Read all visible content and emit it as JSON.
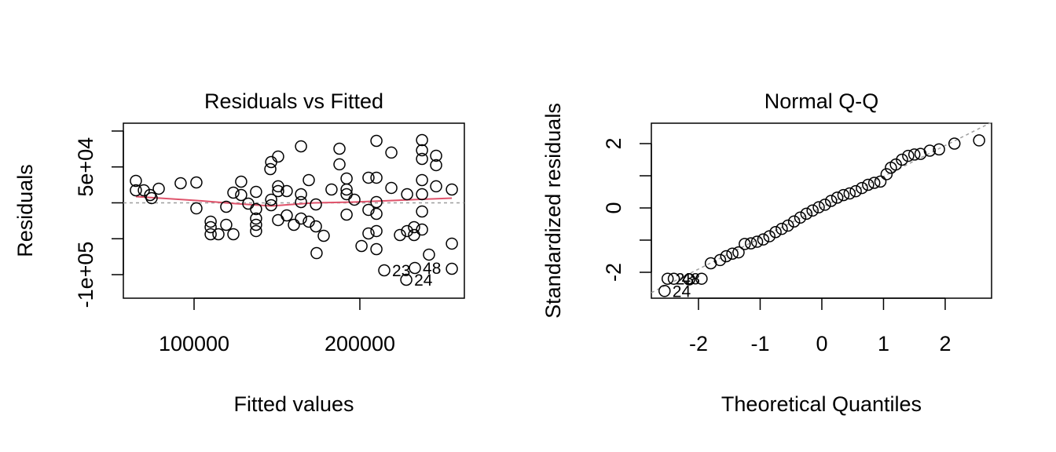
{
  "chart_data": [
    {
      "type": "scatter",
      "title": "Residuals vs Fitted",
      "x_label": "Fitted values",
      "y_label": "Residuals",
      "color": "#000000",
      "x": [
        64900,
        64900,
        69700,
        73500,
        74400,
        78700,
        91900,
        101400,
        101400,
        110000,
        110000,
        110000,
        114700,
        119400,
        119400,
        123700,
        123700,
        128400,
        128400,
        132700,
        137400,
        137400,
        137400,
        137400,
        137400,
        146000,
        146500,
        146500,
        146500,
        150700,
        150700,
        150700,
        150700,
        155900,
        155900,
        160200,
        164500,
        164500,
        164500,
        164500,
        169200,
        169200,
        173500,
        173500,
        178200,
        173900,
        182900,
        187700,
        187700,
        192000,
        192000,
        192000,
        192000,
        196700,
        201000,
        205200,
        205200,
        205200,
        210000,
        210000,
        210000,
        210000,
        210000,
        210000,
        214700,
        219000,
        219000,
        224200,
        228500,
        228500,
        232700,
        232700,
        237500,
        237500,
        237500,
        237500,
        237500,
        237500,
        237500,
        241700,
        246000,
        246000,
        246000,
        255500,
        255500,
        255500,
        228000,
        233200
      ],
      "values": [
        30600,
        17500,
        17500,
        10900,
        6600,
        19700,
        27300,
        28400,
        -7700,
        -26200,
        -33900,
        -43700,
        -43700,
        -5500,
        -30600,
        -43700,
        14200,
        29500,
        10900,
        -1100,
        15300,
        -8700,
        -21900,
        -30600,
        -39300,
        47000,
        56800,
        4400,
        -3300,
        64500,
        23000,
        16400,
        -24000,
        16400,
        -17500,
        -30600,
        78700,
        12000,
        1100,
        -21900,
        31700,
        -26200,
        -2200,
        -32800,
        -45900,
        -70000,
        18600,
        75400,
        53600,
        33900,
        18600,
        12000,
        -16400,
        4400,
        -60100,
        35000,
        -9800,
        -42600,
        86300,
        35000,
        1100,
        -15300,
        -39300,
        -64500,
        -94000,
        70000,
        20800,
        -44800,
        12000,
        -39300,
        -33900,
        -44800,
        87400,
        73200,
        61200,
        31700,
        12000,
        -12000,
        -37200,
        -72100,
        65600,
        52500,
        23000,
        18600,
        -56800,
        -91800,
        -107100,
        -90700
      ],
      "point_labels": [
        null,
        null,
        null,
        null,
        null,
        null,
        null,
        null,
        null,
        null,
        null,
        null,
        null,
        null,
        null,
        null,
        null,
        null,
        null,
        null,
        null,
        null,
        null,
        null,
        null,
        null,
        null,
        null,
        null,
        null,
        null,
        null,
        null,
        null,
        null,
        null,
        null,
        null,
        null,
        null,
        null,
        null,
        null,
        null,
        null,
        null,
        null,
        null,
        null,
        null,
        null,
        null,
        null,
        null,
        null,
        null,
        null,
        null,
        null,
        null,
        null,
        null,
        null,
        null,
        "23",
        null,
        null,
        null,
        null,
        null,
        null,
        null,
        null,
        null,
        null,
        null,
        null,
        null,
        null,
        null,
        null,
        null,
        null,
        null,
        null,
        null,
        "24",
        "48"
      ],
      "smooth": {
        "color": "#DF536B",
        "x": [
          64900,
          101400,
          125100,
          146500,
          172500,
          196200,
          219900,
          255500
        ],
        "values": [
          8700,
          3300,
          -1100,
          -4400,
          0,
          1100,
          3300,
          6600
        ]
      },
      "reference_line": {
        "intercept": 0,
        "slope": 0
      },
      "xlim": [
        57346,
        263033
      ],
      "ylim": [
        -132800,
        110900
      ],
      "xticks": [
        100000,
        200000
      ],
      "yticks": [
        {
          "value": -100000,
          "label": "-1e+05"
        },
        {
          "value": -50000,
          "label": null
        },
        {
          "value": 0,
          "label": null
        },
        {
          "value": 50000,
          "label": "5e+04"
        },
        {
          "value": 100000,
          "label": null
        }
      ]
    },
    {
      "type": "scatter",
      "title": "Normal Q-Q",
      "x_label": "Theoretical Quantiles",
      "y_label": "Standardized residuals",
      "color": "#000000",
      "x": [
        -2.55,
        -2.5,
        -2.4,
        -2.15,
        -1.95,
        -1.8,
        -1.65,
        -1.55,
        -1.45,
        -1.35,
        -1.25,
        -1.15,
        -1.05,
        -0.95,
        -0.85,
        -0.75,
        -0.65,
        -0.55,
        -0.45,
        -0.35,
        -0.25,
        -0.15,
        -0.05,
        0.05,
        0.15,
        0.25,
        0.35,
        0.45,
        0.55,
        0.65,
        0.75,
        0.85,
        0.95,
        1.05,
        1.12,
        1.2,
        1.3,
        1.4,
        1.5,
        1.6,
        1.75,
        1.9,
        2.15,
        2.55
      ],
      "values": [
        -2.58,
        -2.2,
        -2.2,
        -2.22,
        -2.2,
        -1.72,
        -1.62,
        -1.5,
        -1.42,
        -1.38,
        -1.12,
        -1.1,
        -1.05,
        -0.98,
        -0.88,
        -0.75,
        -0.65,
        -0.55,
        -0.42,
        -0.3,
        -0.18,
        -0.08,
        0.02,
        0.1,
        0.22,
        0.32,
        0.4,
        0.45,
        0.52,
        0.62,
        0.72,
        0.78,
        0.82,
        1.05,
        1.25,
        1.35,
        1.5,
        1.62,
        1.66,
        1.68,
        1.78,
        1.82,
        2.0,
        2.1
      ],
      "point_labels": [
        "24",
        "23",
        "48",
        null,
        null,
        null,
        null,
        null,
        null,
        null,
        null,
        null,
        null,
        null,
        null,
        null,
        null,
        null,
        null,
        null,
        null,
        null,
        null,
        null,
        null,
        null,
        null,
        null,
        null,
        null,
        null,
        null,
        null,
        null,
        null,
        null,
        null,
        null,
        null,
        null,
        null,
        null,
        null,
        null
      ],
      "reference_line": {
        "intercept": 0.02,
        "slope": 0.96
      },
      "xlim": [
        -2.764,
        2.752
      ],
      "ylim": [
        -2.805,
        2.634
      ],
      "xticks": [
        -2,
        -1,
        0,
        1,
        2
      ],
      "yticks": [
        -2,
        {
          "value": -1,
          "label": null
        },
        0,
        {
          "value": 1,
          "label": null
        },
        2
      ]
    }
  ]
}
